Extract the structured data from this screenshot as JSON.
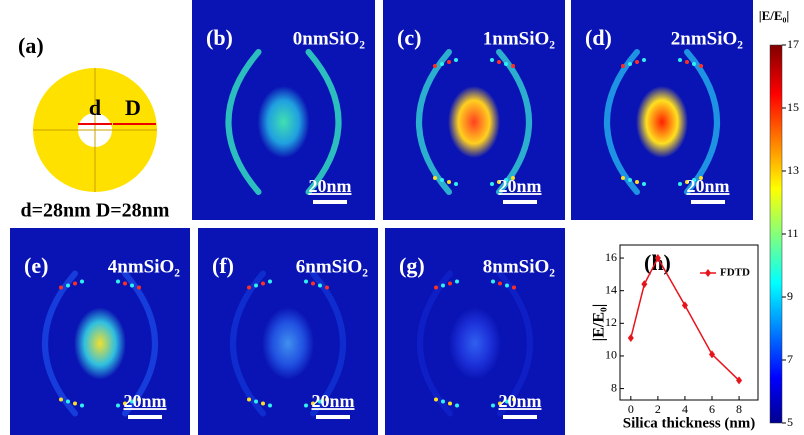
{
  "panel_a": {
    "label": "(a)",
    "d_label": "d",
    "D_label": "D",
    "caption": "d=28nm D=28nm"
  },
  "panels": [
    {
      "label": "(b)",
      "title": "0nmSiO₂",
      "scale": "20nm"
    },
    {
      "label": "(c)",
      "title": "1nmSiO₂",
      "scale": "20nm"
    },
    {
      "label": "(d)",
      "title": "2nmSiO₂",
      "scale": "20nm"
    },
    {
      "label": "(e)",
      "title": "4nmSiO₂",
      "scale": "20nm"
    },
    {
      "label": "(f)",
      "title": "6nmSiO₂",
      "scale": "20nm"
    },
    {
      "label": "(g)",
      "title": "8nmSiO₂",
      "scale": "20nm"
    }
  ],
  "colorbar": {
    "label": "|E/E₀|",
    "lim": [
      5,
      17
    ],
    "ticks": [
      5,
      7,
      9,
      11,
      13,
      15,
      17
    ]
  },
  "chart_data": {
    "type": "line",
    "title": "(h)",
    "x_label": "Silica thickness (nm)",
    "y_label": "|E/E₀|",
    "x": [
      0,
      1,
      2,
      4,
      6,
      8
    ],
    "series": [
      {
        "name": "FDTD",
        "color": "#e8141c",
        "values": [
          11.1,
          14.4,
          16.0,
          13.1,
          10.1,
          8.5
        ]
      }
    ],
    "xlim": [
      -0.8,
      9.4
    ],
    "ylim": [
      7.3,
      16.8
    ],
    "xticks": [
      0,
      2,
      4,
      6,
      8
    ],
    "yticks": [
      8,
      10,
      12,
      14,
      16
    ],
    "legend": "upper right"
  }
}
